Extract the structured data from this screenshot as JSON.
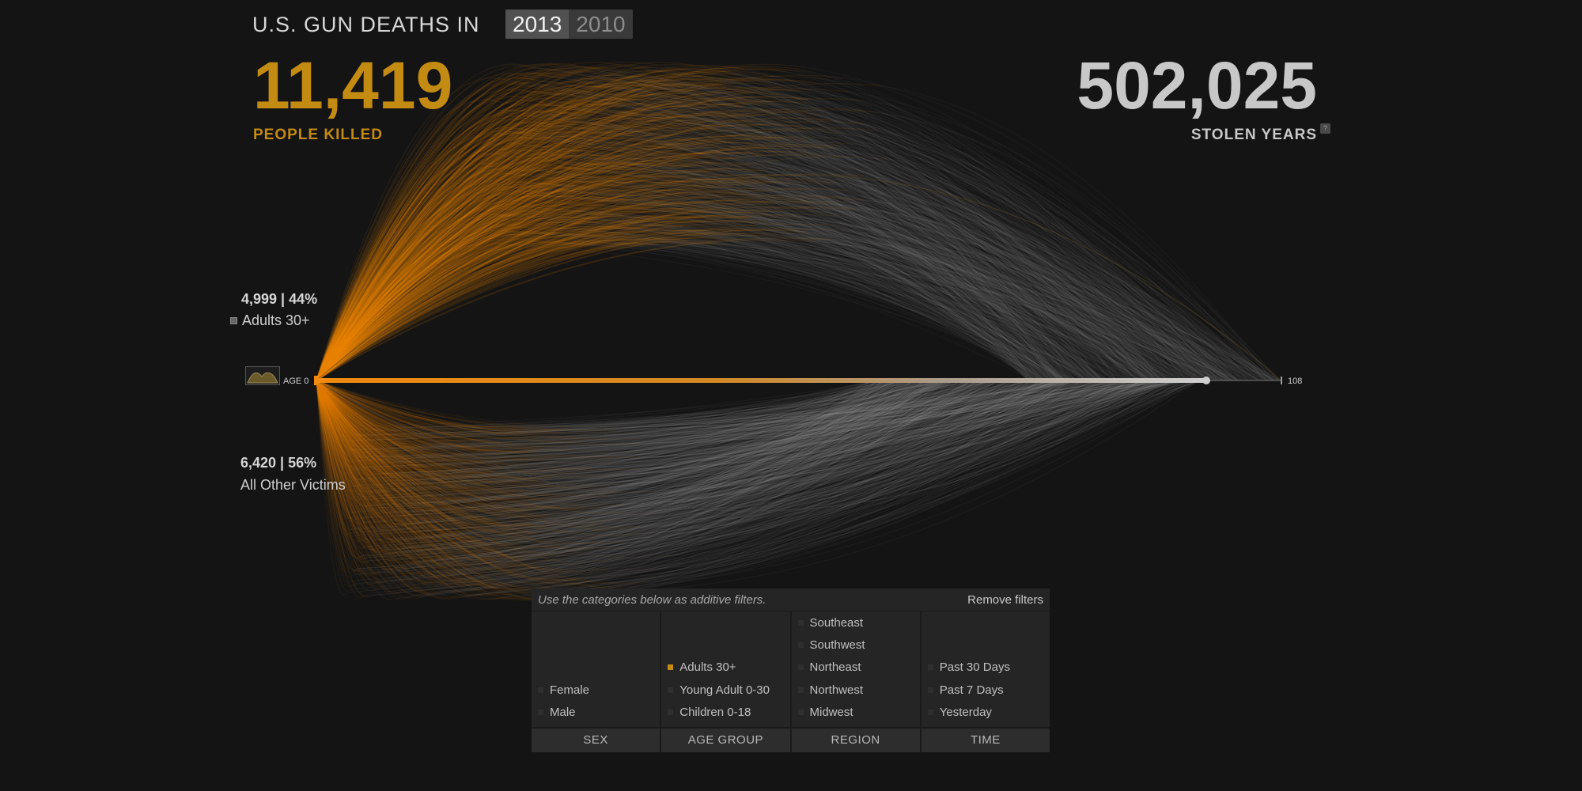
{
  "header": {
    "title": "U.S. GUN DEATHS IN",
    "years": [
      "2013",
      "2010"
    ],
    "active_year": "2013"
  },
  "stats": {
    "killed_value": "11,419",
    "killed_label": "PEOPLE KILLED",
    "stolen_value": "502,025",
    "stolen_label": "STOLEN YEARS",
    "help_label": "?"
  },
  "groups": {
    "top": {
      "stat": "4,999 | 44%",
      "name": "Adults 30+"
    },
    "bottom": {
      "stat": "6,420 | 56%",
      "name": "All Other Victims"
    }
  },
  "axis": {
    "start_label": "AGE 0",
    "end_label": "108"
  },
  "filters": {
    "hint": "Use the categories below as additive filters.",
    "remove_label": "Remove filters",
    "columns": [
      {
        "footer": "SEX",
        "items": [
          {
            "label": "Female",
            "on": false
          },
          {
            "label": "Male",
            "on": false
          }
        ]
      },
      {
        "footer": "AGE GROUP",
        "items": [
          {
            "label": "Adults 30+",
            "on": true
          },
          {
            "label": "Young Adult 0-30",
            "on": false
          },
          {
            "label": "Children 0-18",
            "on": false
          }
        ]
      },
      {
        "footer": "REGION",
        "items": [
          {
            "label": "Southeast",
            "on": false
          },
          {
            "label": "Southwest",
            "on": false
          },
          {
            "label": "Northeast",
            "on": false
          },
          {
            "label": "Northwest",
            "on": false
          },
          {
            "label": "Midwest",
            "on": false
          }
        ]
      },
      {
        "footer": "TIME",
        "items": [
          {
            "label": "Past 30 Days",
            "on": false
          },
          {
            "label": "Past 7 Days",
            "on": false
          },
          {
            "label": "Yesterday",
            "on": false
          }
        ]
      }
    ]
  },
  "colors": {
    "accent": "#c48b12",
    "orange_arc": "#f08a10",
    "grey_arc": "#c4c4c4",
    "background": "#141414"
  },
  "chart_data": {
    "type": "arc",
    "x_domain": [
      0,
      108
    ],
    "series": [
      {
        "name": "Adults 30+",
        "count": 4999,
        "percent": 44
      },
      {
        "name": "All Other Victims",
        "count": 6420,
        "percent": 56
      }
    ],
    "totals": {
      "people_killed": 11419,
      "stolen_years": 502025
    }
  }
}
